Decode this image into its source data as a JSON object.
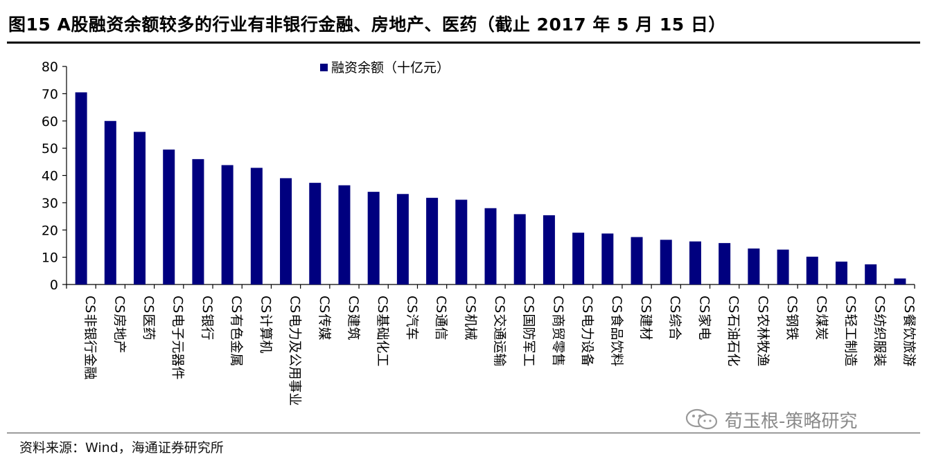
{
  "figure": {
    "title": "图15  A股融资余额较多的行业有非银行金融、房地产、医药（截止 2017 年 5 月 15 日）",
    "source": "资料来源：Wind，海通证券研究所",
    "watermark": "荀玉根-策略研究"
  },
  "chart_data": {
    "type": "bar",
    "title": "",
    "xlabel": "",
    "ylabel": "",
    "ylim": [
      0,
      80
    ],
    "yticks": [
      0,
      10,
      20,
      30,
      40,
      50,
      60,
      70,
      80
    ],
    "grid": false,
    "legend": "top-left",
    "bar_color": "#00007f",
    "categories": [
      "CS非银行金融",
      "CS房地产",
      "CS医药",
      "CS电子元器件",
      "CS银行",
      "CS有色金属",
      "CS计算机",
      "CS电力及公用事业",
      "CS传媒",
      "CS建筑",
      "CS基础化工",
      "CS汽车",
      "CS通信",
      "CS机械",
      "CS交通运输",
      "CS国防军工",
      "CS商贸零售",
      "CS电力设备",
      "CS食品饮料",
      "CS建材",
      "CS综合",
      "CS家电",
      "CS石油石化",
      "CS农林牧渔",
      "CS钢铁",
      "CS煤炭",
      "CS轻工制造",
      "CS纺织服装",
      "CS餐饮旅游"
    ],
    "series": [
      {
        "name": "融资余额（十亿元）",
        "values": [
          70.5,
          60.0,
          56.0,
          49.5,
          46.0,
          43.8,
          42.8,
          39.0,
          37.3,
          36.4,
          34.0,
          33.2,
          31.8,
          31.1,
          28.0,
          25.8,
          25.4,
          19.0,
          18.7,
          17.4,
          16.4,
          15.8,
          15.2,
          13.2,
          12.8,
          10.2,
          8.4,
          7.4,
          2.2
        ]
      }
    ]
  }
}
